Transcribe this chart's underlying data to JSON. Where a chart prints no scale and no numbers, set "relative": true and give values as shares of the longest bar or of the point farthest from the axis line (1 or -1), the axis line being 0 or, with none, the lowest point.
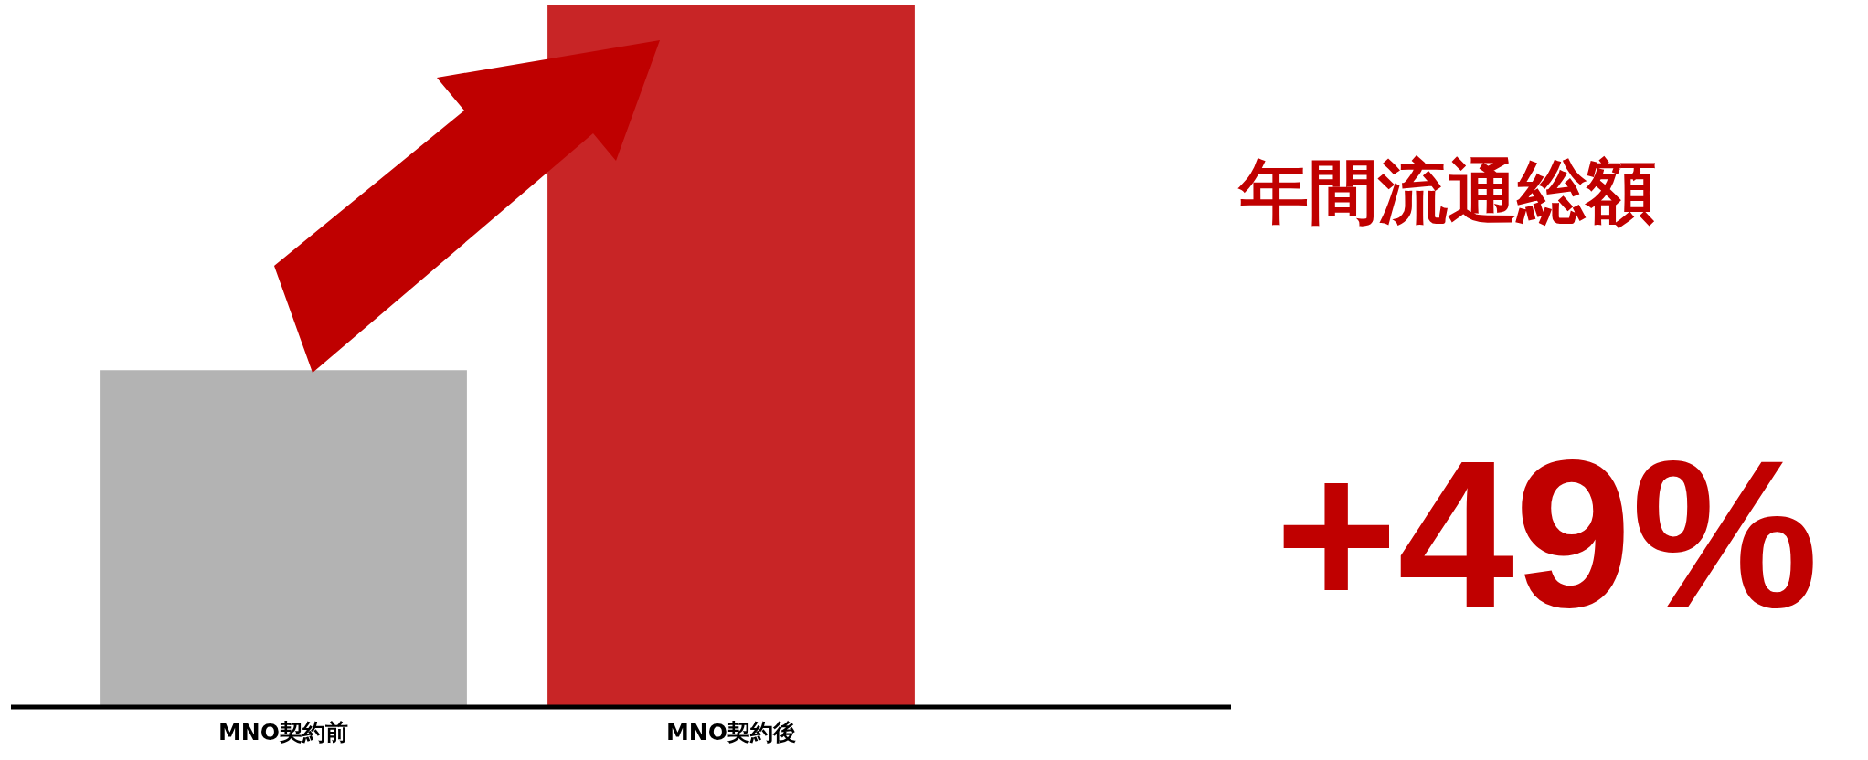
{
  "chart_data": {
    "type": "bar",
    "title": "年間流通総額",
    "categories": [
      "MNO契約前",
      "MNO契約後"
    ],
    "colors": [
      "#b3b3b3",
      "#c82526"
    ],
    "values": [
      0.48,
      1
    ],
    "relative": true,
    "legend": false,
    "annotations": [
      "+49%"
    ]
  }
}
